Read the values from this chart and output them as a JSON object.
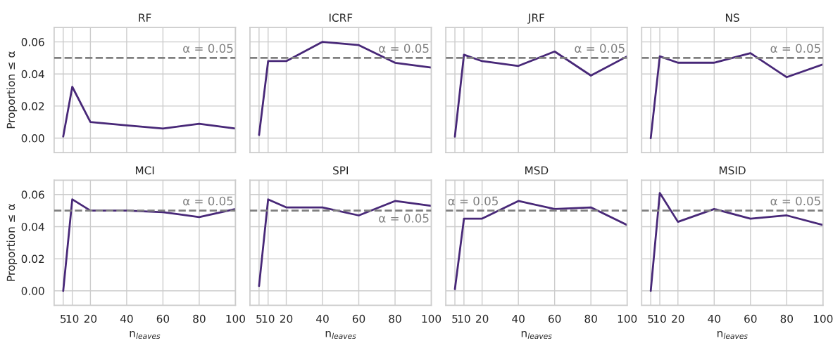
{
  "chart_data": [
    {
      "type": "line",
      "title": "RF",
      "ylabel": "Proportion ≤ α",
      "x": [
        5,
        10,
        20,
        40,
        60,
        80,
        100
      ],
      "series": [
        {
          "color": "#482878",
          "values": [
            0.001,
            0.032,
            0.01,
            0.008,
            0.006,
            0.009,
            0.006
          ]
        }
      ],
      "xlim": [
        0,
        100
      ],
      "ylim": [
        -0.009,
        0.069
      ],
      "xticks": [
        5,
        10,
        20,
        40,
        60,
        80,
        100
      ],
      "yticks": [
        {
          "value": 0,
          "label": "0.00"
        },
        {
          "value": 0.02,
          "label": "0.02"
        },
        {
          "value": 0.04,
          "label": "0.04"
        },
        {
          "value": 0.06,
          "label": "0.06"
        }
      ],
      "ref_lines": [
        {
          "axis": "y",
          "value": 0.05,
          "label": "α = 0.05",
          "color": "#808080",
          "line_style": "dashed"
        }
      ],
      "grid": true,
      "tick_labels": "y"
    },
    {
      "type": "line",
      "title": "ICRF",
      "x": [
        5,
        10,
        20,
        40,
        60,
        80,
        100
      ],
      "series": [
        {
          "color": "#482878",
          "values": [
            0.002,
            0.048,
            0.048,
            0.06,
            0.058,
            0.047,
            0.044
          ]
        }
      ],
      "xlim": [
        0,
        100
      ],
      "ylim": [
        -0.009,
        0.069
      ],
      "xticks": [
        5,
        10,
        20,
        40,
        60,
        80,
        100
      ],
      "yticks": [
        0,
        0.02,
        0.04,
        0.06
      ],
      "ref_lines": [
        {
          "axis": "y",
          "value": 0.05,
          "label": "α = 0.05",
          "color": "#808080",
          "line_style": "dashed"
        }
      ],
      "grid": true,
      "tick_labels": false
    },
    {
      "type": "line",
      "title": "JRF",
      "x": [
        5,
        10,
        20,
        40,
        60,
        80,
        100
      ],
      "series": [
        {
          "color": "#482878",
          "values": [
            0.001,
            0.052,
            0.048,
            0.045,
            0.054,
            0.039,
            0.051
          ]
        }
      ],
      "xlim": [
        0,
        100
      ],
      "ylim": [
        -0.009,
        0.069
      ],
      "xticks": [
        5,
        10,
        20,
        40,
        60,
        80,
        100
      ],
      "yticks": [
        0,
        0.02,
        0.04,
        0.06
      ],
      "ref_lines": [
        {
          "axis": "y",
          "value": 0.05,
          "label": "α = 0.05",
          "color": "#808080",
          "line_style": "dashed"
        }
      ],
      "grid": true,
      "tick_labels": false
    },
    {
      "type": "line",
      "title": "NS",
      "x": [
        5,
        10,
        20,
        40,
        60,
        80,
        100
      ],
      "series": [
        {
          "color": "#482878",
          "values": [
            0.0,
            0.051,
            0.047,
            0.047,
            0.053,
            0.038,
            0.046
          ]
        }
      ],
      "xlim": [
        0,
        100
      ],
      "ylim": [
        -0.009,
        0.069
      ],
      "xticks": [
        5,
        10,
        20,
        40,
        60,
        80,
        100
      ],
      "yticks": [
        0,
        0.02,
        0.04,
        0.06
      ],
      "ref_lines": [
        {
          "axis": "y",
          "value": 0.05,
          "label": "α = 0.05",
          "color": "#808080",
          "line_style": "dashed"
        }
      ],
      "grid": true,
      "tick_labels": false
    },
    {
      "type": "line",
      "title": "MCI",
      "xlabel": "n$_{leaves}$",
      "ylabel": "Proportion ≤ α",
      "x": [
        5,
        10,
        20,
        40,
        60,
        80,
        100
      ],
      "series": [
        {
          "color": "#482878",
          "values": [
            0.0,
            0.057,
            0.05,
            0.05,
            0.049,
            0.046,
            0.051
          ]
        }
      ],
      "xlim": [
        0,
        100
      ],
      "ylim": [
        -0.009,
        0.069
      ],
      "xticks": [
        5,
        10,
        20,
        40,
        60,
        80,
        100
      ],
      "yticks": [
        {
          "value": 0,
          "label": "0.00"
        },
        {
          "value": 0.02,
          "label": "0.02"
        },
        {
          "value": 0.04,
          "label": "0.04"
        },
        {
          "value": 0.06,
          "label": "0.06"
        }
      ],
      "ref_lines": [
        {
          "axis": "y",
          "value": 0.05,
          "label": "α = 0.05",
          "color": "#808080",
          "line_style": "dashed"
        }
      ],
      "grid": true
    },
    {
      "type": "line",
      "title": "SPI",
      "xlabel": "n$_{leaves}$",
      "x": [
        5,
        10,
        20,
        40,
        60,
        80,
        100
      ],
      "series": [
        {
          "color": "#482878",
          "values": [
            0.003,
            0.057,
            0.052,
            0.052,
            0.047,
            0.056,
            0.053
          ]
        }
      ],
      "xlim": [
        0,
        100
      ],
      "ylim": [
        -0.009,
        0.069
      ],
      "xticks": [
        5,
        10,
        20,
        40,
        60,
        80,
        100
      ],
      "yticks": [
        0,
        0.02,
        0.04,
        0.06
      ],
      "ref_lines": [
        {
          "axis": "y",
          "value": 0.05,
          "label": "α = 0.05",
          "color": "#808080",
          "line_style": "dashed"
        }
      ],
      "grid": true,
      "tick_labels": "x"
    },
    {
      "type": "line",
      "title": "MSD",
      "xlabel": "n$_{leaves}$",
      "x": [
        5,
        10,
        20,
        40,
        60,
        80,
        100
      ],
      "series": [
        {
          "color": "#482878",
          "values": [
            0.001,
            0.045,
            0.045,
            0.056,
            0.051,
            0.052,
            0.041
          ]
        }
      ],
      "xlim": [
        0,
        100
      ],
      "ylim": [
        -0.009,
        0.069
      ],
      "xticks": [
        5,
        10,
        20,
        40,
        60,
        80,
        100
      ],
      "yticks": [
        0,
        0.02,
        0.04,
        0.06
      ],
      "ref_lines": [
        {
          "axis": "y",
          "value": 0.05,
          "label": "α = 0.05",
          "color": "#808080",
          "line_style": "dashed"
        }
      ],
      "grid": true,
      "tick_labels": "x"
    },
    {
      "type": "line",
      "title": "MSID",
      "xlabel": "n$_{leaves}$",
      "x": [
        5,
        10,
        20,
        40,
        60,
        80,
        100
      ],
      "series": [
        {
          "color": "#482878",
          "values": [
            0.0,
            0.061,
            0.043,
            0.051,
            0.045,
            0.047,
            0.041
          ]
        }
      ],
      "xlim": [
        0,
        100
      ],
      "ylim": [
        -0.009,
        0.069
      ],
      "xticks": [
        5,
        10,
        20,
        40,
        60,
        80,
        100
      ],
      "yticks": [
        0,
        0.02,
        0.04,
        0.06
      ],
      "ref_lines": [
        {
          "axis": "y",
          "value": 0.05,
          "label": "α = 0.05",
          "color": "#808080",
          "line_style": "dashed"
        }
      ],
      "grid": true,
      "tick_labels": "x"
    }
  ]
}
